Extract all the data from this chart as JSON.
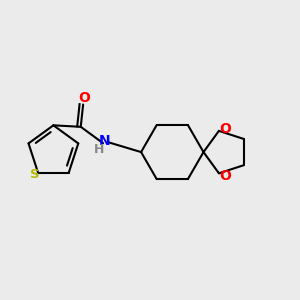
{
  "background_color": "#ebebeb",
  "bond_color": "#000000",
  "S_color": "#b8b800",
  "N_color": "#0000ff",
  "O_color": "#ff0000",
  "line_width": 1.5,
  "figsize": [
    3.0,
    3.0
  ],
  "dpi": 100,
  "xlim": [
    0.0,
    1.0
  ],
  "ylim": [
    0.15,
    0.85
  ]
}
